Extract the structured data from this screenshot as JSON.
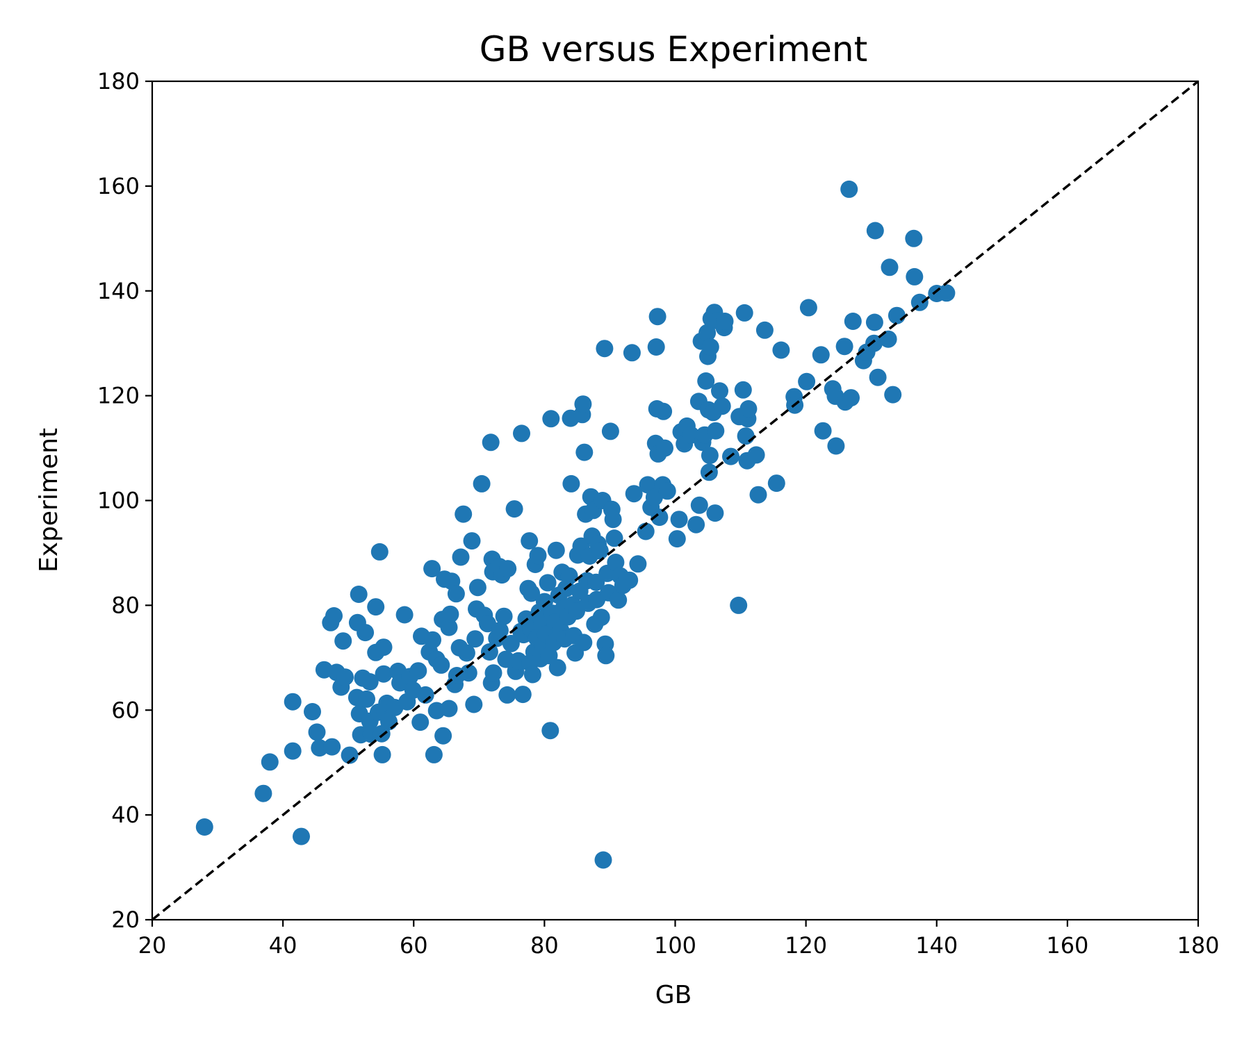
{
  "chart_data": {
    "type": "scatter",
    "title": "GB versus Experiment",
    "xlabel": "GB",
    "ylabel": "Experiment",
    "xlim": [
      20,
      180
    ],
    "ylim": [
      20,
      180
    ],
    "xticks": [
      "20",
      "40",
      "60",
      "80",
      "100",
      "120",
      "140",
      "160",
      "180"
    ],
    "yticks": [
      "20",
      "40",
      "60",
      "80",
      "100",
      "120",
      "140",
      "160",
      "180"
    ],
    "grid": false,
    "legend": "none",
    "marker_color": "#1f77b4",
    "reference_line": {
      "from": [
        20,
        20
      ],
      "to": [
        180,
        180
      ],
      "style": "dashed",
      "color": "#000000"
    },
    "series": [
      {
        "points": [
          [
            28.0,
            37.7
          ],
          [
            37.0,
            44.1
          ],
          [
            38.0,
            50.1
          ],
          [
            41.5,
            61.6
          ],
          [
            41.5,
            52.2
          ],
          [
            42.8,
            35.9
          ],
          [
            44.5,
            59.7
          ],
          [
            45.2,
            55.8
          ],
          [
            45.6,
            52.8
          ],
          [
            46.3,
            67.7
          ],
          [
            47.3,
            76.7
          ],
          [
            47.5,
            53.0
          ],
          [
            47.8,
            78.0
          ],
          [
            48.2,
            67.2
          ],
          [
            48.9,
            64.4
          ],
          [
            49.2,
            73.2
          ],
          [
            49.5,
            66.3
          ],
          [
            50.2,
            51.4
          ],
          [
            51.3,
            62.4
          ],
          [
            51.4,
            76.7
          ],
          [
            51.6,
            82.1
          ],
          [
            51.7,
            59.3
          ],
          [
            51.9,
            55.3
          ],
          [
            52.2,
            66.1
          ],
          [
            52.6,
            74.8
          ],
          [
            52.8,
            62.1
          ],
          [
            53.3,
            57.9
          ],
          [
            53.3,
            65.4
          ],
          [
            53.5,
            55.4
          ],
          [
            54.2,
            79.7
          ],
          [
            54.2,
            71.0
          ],
          [
            54.6,
            59.6
          ],
          [
            54.8,
            90.2
          ],
          [
            55.1,
            55.5
          ],
          [
            55.2,
            51.5
          ],
          [
            55.4,
            72.0
          ],
          [
            55.4,
            66.9
          ],
          [
            55.6,
            59.6
          ],
          [
            55.9,
            61.3
          ],
          [
            56.2,
            57.8
          ],
          [
            57.1,
            60.5
          ],
          [
            57.6,
            67.4
          ],
          [
            57.9,
            65.2
          ],
          [
            58.6,
            78.2
          ],
          [
            59.0,
            61.6
          ],
          [
            59.4,
            66.4
          ],
          [
            59.9,
            63.8
          ],
          [
            60.7,
            67.5
          ],
          [
            61.0,
            57.7
          ],
          [
            61.2,
            74.1
          ],
          [
            61.8,
            62.9
          ],
          [
            62.4,
            71.1
          ],
          [
            62.8,
            87.0
          ],
          [
            62.9,
            73.4
          ],
          [
            63.1,
            51.5
          ],
          [
            63.5,
            59.9
          ],
          [
            63.5,
            69.7
          ],
          [
            64.2,
            68.6
          ],
          [
            64.4,
            77.3
          ],
          [
            64.5,
            55.1
          ],
          [
            64.7,
            85.0
          ],
          [
            65.4,
            60.3
          ],
          [
            65.4,
            75.8
          ],
          [
            65.6,
            78.3
          ],
          [
            65.8,
            84.6
          ],
          [
            66.3,
            64.9
          ],
          [
            66.5,
            82.2
          ],
          [
            66.6,
            66.6
          ],
          [
            67.0,
            71.9
          ],
          [
            67.2,
            89.2
          ],
          [
            67.6,
            97.4
          ],
          [
            68.1,
            70.9
          ],
          [
            68.4,
            67.1
          ],
          [
            68.9,
            92.3
          ],
          [
            69.2,
            61.1
          ],
          [
            69.4,
            73.6
          ],
          [
            69.6,
            79.3
          ],
          [
            69.8,
            83.4
          ],
          [
            70.4,
            103.2
          ],
          [
            70.8,
            78.1
          ],
          [
            71.3,
            76.5
          ],
          [
            71.6,
            71.1
          ],
          [
            71.8,
            111.1
          ],
          [
            71.9,
            65.2
          ],
          [
            72.0,
            88.8
          ],
          [
            72.1,
            86.4
          ],
          [
            72.2,
            67.1
          ],
          [
            72.7,
            73.7
          ],
          [
            73.1,
            87.4
          ],
          [
            73.2,
            75.2
          ],
          [
            73.5,
            85.8
          ],
          [
            73.8,
            77.9
          ],
          [
            74.1,
            69.7
          ],
          [
            74.3,
            62.9
          ],
          [
            74.4,
            87.0
          ],
          [
            74.9,
            72.7
          ],
          [
            75.4,
            98.4
          ],
          [
            75.6,
            67.4
          ],
          [
            76.0,
            69.4
          ],
          [
            76.4,
            75.0
          ],
          [
            76.5,
            112.8
          ],
          [
            76.7,
            63.0
          ],
          [
            76.8,
            74.4
          ],
          [
            77.2,
            77.4
          ],
          [
            77.5,
            83.2
          ],
          [
            77.7,
            92.3
          ],
          [
            77.8,
            69.0
          ],
          [
            77.9,
            75.5
          ],
          [
            78.0,
            82.3
          ],
          [
            78.2,
            66.8
          ],
          [
            78.4,
            71.1
          ],
          [
            78.6,
            87.8
          ],
          [
            78.8,
            73.8
          ],
          [
            79.0,
            89.5
          ],
          [
            79.2,
            78.7
          ],
          [
            79.4,
            69.8
          ],
          [
            79.6,
            76.9
          ],
          [
            79.8,
            72.2
          ],
          [
            80.0,
            80.7
          ],
          [
            80.2,
            74.5
          ],
          [
            80.5,
            84.3
          ],
          [
            80.7,
            70.4
          ],
          [
            80.9,
            56.1
          ],
          [
            81.0,
            115.6
          ],
          [
            81.2,
            78.5
          ],
          [
            81.4,
            72.9
          ],
          [
            81.6,
            76.8
          ],
          [
            81.8,
            90.5
          ],
          [
            82.0,
            68.1
          ],
          [
            82.2,
            81.9
          ],
          [
            82.5,
            75.2
          ],
          [
            82.7,
            86.3
          ],
          [
            82.9,
            79.4
          ],
          [
            83.1,
            73.6
          ],
          [
            83.3,
            83.2
          ],
          [
            83.6,
            77.8
          ],
          [
            83.8,
            85.6
          ],
          [
            84.0,
            115.7
          ],
          [
            84.1,
            103.2
          ],
          [
            84.3,
            80.1
          ],
          [
            84.5,
            74.2
          ],
          [
            84.7,
            70.9
          ],
          [
            84.9,
            78.9
          ],
          [
            85.1,
            89.6
          ],
          [
            85.4,
            82.7
          ],
          [
            85.6,
            91.3
          ],
          [
            85.8,
            116.4
          ],
          [
            85.9,
            118.4
          ],
          [
            86.0,
            72.9
          ],
          [
            86.1,
            109.2
          ],
          [
            86.3,
            97.4
          ],
          [
            86.5,
            84.7
          ],
          [
            86.7,
            80.4
          ],
          [
            86.9,
            89.4
          ],
          [
            87.1,
            100.7
          ],
          [
            87.3,
            93.2
          ],
          [
            87.5,
            98.1
          ],
          [
            87.7,
            76.4
          ],
          [
            87.9,
            84.4
          ],
          [
            88.0,
            81.1
          ],
          [
            88.2,
            91.7
          ],
          [
            88.5,
            90.4
          ],
          [
            88.7,
            77.7
          ],
          [
            88.9,
            100.0
          ],
          [
            89.0,
            31.4
          ],
          [
            89.2,
            129.0
          ],
          [
            89.3,
            72.6
          ],
          [
            89.4,
            70.4
          ],
          [
            89.6,
            86.1
          ],
          [
            89.8,
            82.4
          ],
          [
            90.1,
            113.2
          ],
          [
            90.3,
            98.3
          ],
          [
            90.5,
            96.4
          ],
          [
            90.7,
            92.8
          ],
          [
            90.9,
            88.2
          ],
          [
            91.3,
            81.0
          ],
          [
            91.6,
            85.6
          ],
          [
            92.0,
            83.8
          ],
          [
            93.0,
            84.8
          ],
          [
            93.4,
            128.2
          ],
          [
            93.7,
            101.3
          ],
          [
            94.3,
            87.9
          ],
          [
            95.5,
            94.1
          ],
          [
            95.8,
            103.0
          ],
          [
            96.3,
            98.7
          ],
          [
            96.8,
            100.6
          ],
          [
            97.0,
            110.9
          ],
          [
            97.1,
            129.3
          ],
          [
            97.2,
            117.5
          ],
          [
            97.3,
            135.1
          ],
          [
            97.4,
            108.9
          ],
          [
            97.6,
            96.8
          ],
          [
            98.1,
            103.0
          ],
          [
            98.2,
            117.0
          ],
          [
            98.4,
            110.0
          ],
          [
            98.8,
            101.8
          ],
          [
            100.3,
            92.7
          ],
          [
            100.6,
            96.4
          ],
          [
            100.9,
            113.1
          ],
          [
            101.4,
            110.8
          ],
          [
            101.8,
            114.2
          ],
          [
            102.4,
            112.5
          ],
          [
            103.2,
            95.4
          ],
          [
            103.6,
            118.9
          ],
          [
            103.7,
            99.1
          ],
          [
            104.0,
            130.4
          ],
          [
            104.2,
            111.1
          ],
          [
            104.5,
            112.5
          ],
          [
            104.7,
            122.8
          ],
          [
            104.9,
            132.0
          ],
          [
            105.0,
            127.5
          ],
          [
            105.1,
            117.3
          ],
          [
            105.2,
            105.4
          ],
          [
            105.3,
            108.6
          ],
          [
            105.4,
            129.3
          ],
          [
            105.5,
            134.7
          ],
          [
            105.8,
            116.8
          ],
          [
            106.0,
            135.9
          ],
          [
            106.1,
            97.6
          ],
          [
            106.2,
            113.3
          ],
          [
            106.5,
            134.3
          ],
          [
            106.8,
            120.9
          ],
          [
            107.2,
            118.0
          ],
          [
            107.5,
            133.0
          ],
          [
            107.6,
            134.2
          ],
          [
            108.5,
            108.4
          ],
          [
            109.7,
            80.0
          ],
          [
            109.8,
            116.0
          ],
          [
            110.4,
            121.1
          ],
          [
            110.6,
            135.8
          ],
          [
            110.8,
            112.3
          ],
          [
            111.0,
            107.6
          ],
          [
            111.1,
            115.6
          ],
          [
            111.2,
            117.5
          ],
          [
            112.4,
            108.7
          ],
          [
            112.7,
            101.1
          ],
          [
            113.7,
            132.5
          ],
          [
            115.5,
            103.3
          ],
          [
            116.2,
            128.7
          ],
          [
            118.2,
            119.8
          ],
          [
            118.3,
            118.2
          ],
          [
            120.1,
            122.7
          ],
          [
            120.4,
            136.8
          ],
          [
            122.3,
            127.8
          ],
          [
            122.6,
            113.3
          ],
          [
            124.1,
            121.3
          ],
          [
            124.5,
            119.9
          ],
          [
            124.6,
            110.4
          ],
          [
            125.9,
            129.4
          ],
          [
            126.0,
            118.8
          ],
          [
            126.6,
            159.4
          ],
          [
            126.9,
            119.6
          ],
          [
            127.2,
            134.2
          ],
          [
            128.8,
            126.7
          ],
          [
            129.3,
            128.3
          ],
          [
            130.4,
            130.0
          ],
          [
            130.5,
            134.0
          ],
          [
            130.6,
            151.5
          ],
          [
            131.0,
            123.5
          ],
          [
            132.6,
            130.8
          ],
          [
            132.8,
            144.5
          ],
          [
            133.3,
            120.2
          ],
          [
            133.9,
            135.3
          ],
          [
            136.5,
            150.0
          ],
          [
            136.6,
            142.7
          ],
          [
            137.4,
            137.8
          ],
          [
            140.0,
            139.5
          ],
          [
            141.5,
            139.6
          ]
        ]
      }
    ]
  }
}
